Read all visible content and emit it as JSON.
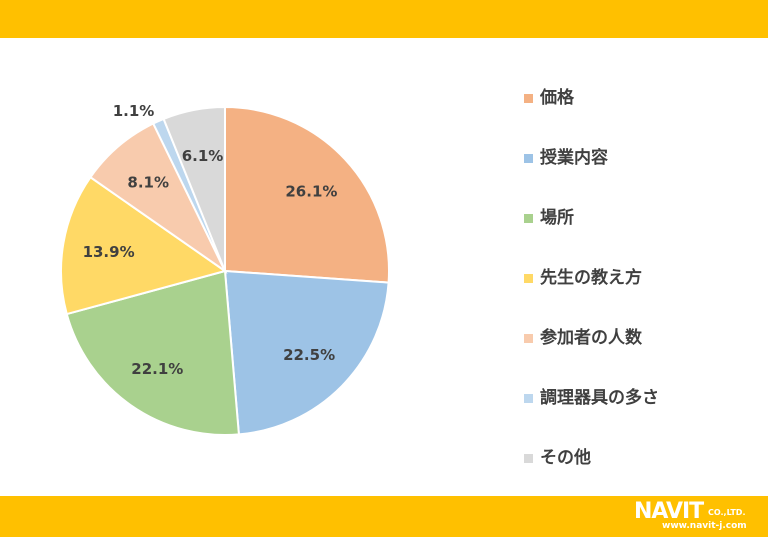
{
  "colors": {
    "banner": "#FFC000",
    "slice_border": "#ffffff",
    "label_text": "#404040"
  },
  "chart_data": {
    "type": "pie",
    "title": "",
    "start_angle_deg": 0,
    "direction": "clockwise",
    "legend_position": "right",
    "slices": [
      {
        "label": "価格",
        "value": 26.1,
        "display": "26.1%",
        "color": "#F4B183"
      },
      {
        "label": "授業内容",
        "value": 22.5,
        "display": "22.5%",
        "color": "#9DC3E6"
      },
      {
        "label": "場所",
        "value": 22.1,
        "display": "22.1%",
        "color": "#A9D18E"
      },
      {
        "label": "先生の教え方",
        "value": 13.9,
        "display": "13.9%",
        "color": "#FFD966"
      },
      {
        "label": "参加者の人数",
        "value": 8.1,
        "display": "8.1%",
        "color": "#F8CBAD"
      },
      {
        "label": "調理器具の多さ",
        "value": 1.1,
        "display": "1.1%",
        "color": "#BDD7EE"
      },
      {
        "label": "その他",
        "value": 6.1,
        "display": "6.1%",
        "color": "#D9D9D9"
      }
    ]
  },
  "logo": {
    "mark": "NAVIT",
    "company_suffix": "CO.,LTD.",
    "url": "www.navit-j.com"
  }
}
